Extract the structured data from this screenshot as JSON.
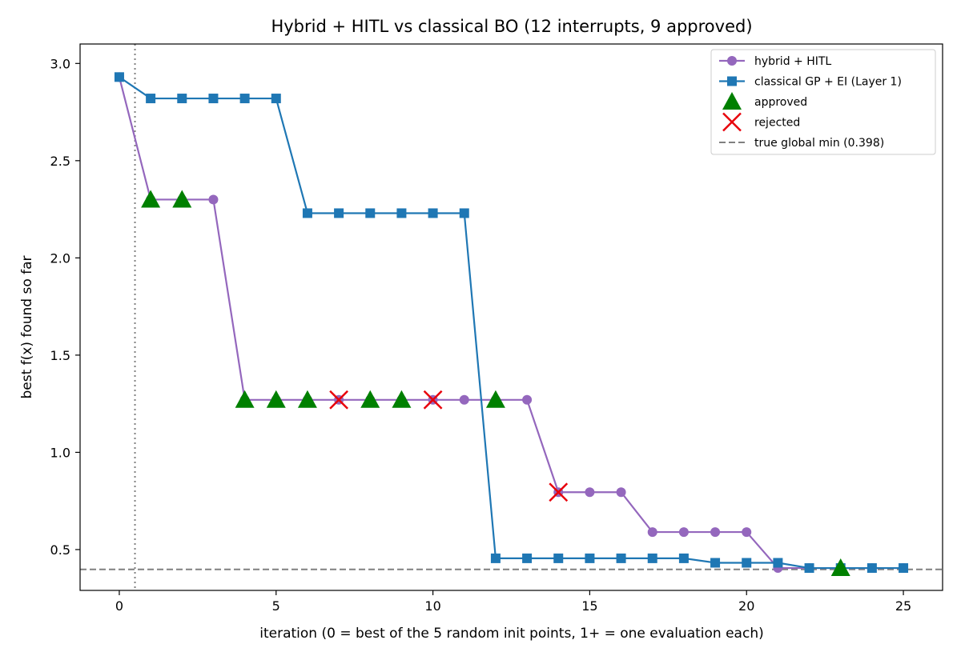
{
  "chart_data": {
    "type": "line",
    "title": "Hybrid + HITL vs classical BO (12 interrupts, 9 approved)",
    "xlabel": "iteration (0 = best of the 5 random init points, 1+ = one evaluation each)",
    "ylabel": "best f(x) found so far",
    "xlim": [
      -1.25,
      26.25
    ],
    "ylim": [
      0.29,
      3.1
    ],
    "xticks": [
      0,
      5,
      10,
      15,
      20,
      25
    ],
    "yticks": [
      0.5,
      1.0,
      1.5,
      2.0,
      2.5,
      3.0
    ],
    "ytick_labels": [
      "0.5",
      "1.0",
      "1.5",
      "2.0",
      "2.5",
      "3.0"
    ],
    "grid": false,
    "legend_position": "top-right",
    "series": [
      {
        "name": "hybrid + HITL",
        "color": "#9467bd",
        "marker": "circle",
        "x": [
          0,
          1,
          2,
          3,
          4,
          5,
          6,
          7,
          8,
          9,
          10,
          11,
          12,
          13,
          14,
          15,
          16,
          17,
          18,
          19,
          20,
          21,
          22,
          23,
          24,
          25
        ],
        "y": [
          2.93,
          2.3,
          2.3,
          2.3,
          1.27,
          1.27,
          1.27,
          1.27,
          1.27,
          1.27,
          1.27,
          1.27,
          1.27,
          1.27,
          0.795,
          0.795,
          0.795,
          0.59,
          0.59,
          0.59,
          0.59,
          0.405,
          0.405,
          0.405,
          0.405,
          0.405
        ]
      },
      {
        "name": "classical GP + EI (Layer 1)",
        "color": "#1f77b4",
        "marker": "square",
        "x": [
          0,
          1,
          2,
          3,
          4,
          5,
          6,
          7,
          8,
          9,
          10,
          11,
          12,
          13,
          14,
          15,
          16,
          17,
          18,
          19,
          20,
          21,
          22,
          23,
          24,
          25
        ],
        "y": [
          2.93,
          2.82,
          2.82,
          2.82,
          2.82,
          2.82,
          2.23,
          2.23,
          2.23,
          2.23,
          2.23,
          2.23,
          0.455,
          0.455,
          0.455,
          0.455,
          0.455,
          0.455,
          0.455,
          0.432,
          0.432,
          0.432,
          0.405,
          0.405,
          0.405,
          0.405
        ]
      }
    ],
    "approved": {
      "name": "approved",
      "color": "#008000",
      "x": [
        1,
        2,
        4,
        5,
        6,
        8,
        9,
        12,
        23
      ],
      "y": [
        2.3,
        2.3,
        1.27,
        1.27,
        1.27,
        1.27,
        1.27,
        1.27,
        0.405
      ]
    },
    "rejected": {
      "name": "rejected",
      "color": "#e8000b",
      "x": [
        7,
        10,
        14
      ],
      "y": [
        1.27,
        1.27,
        0.795
      ]
    },
    "reference_line": {
      "name": "true global min (0.398)",
      "y": 0.398,
      "color": "#808080"
    },
    "init_divider_x": 0.5
  }
}
